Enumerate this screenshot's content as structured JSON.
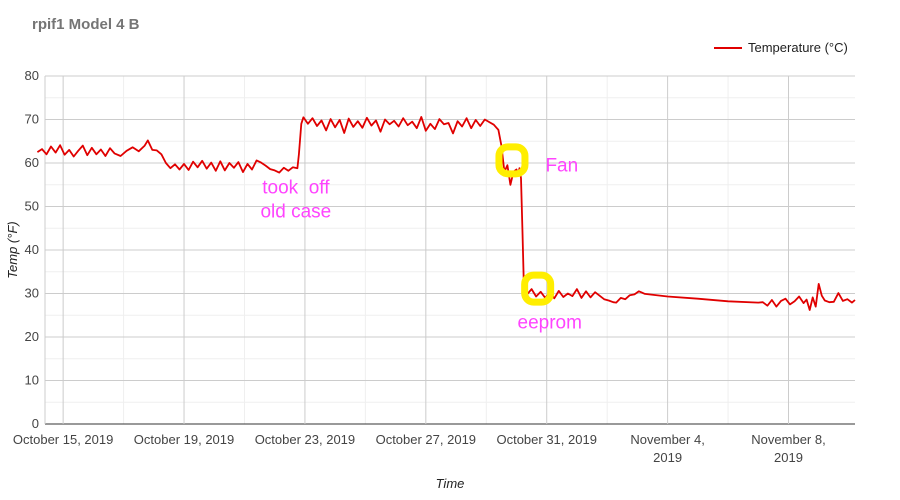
{
  "chart_data": {
    "type": "line",
    "title": "rpif1 Model 4 B",
    "xlabel": "Time",
    "ylabel": "Temp (°F)",
    "ylim": [
      0,
      80
    ],
    "yticks": [
      0,
      10,
      20,
      30,
      40,
      50,
      60,
      70,
      80
    ],
    "xticks": [
      {
        "day": 0,
        "label": [
          "October 15, 2019"
        ]
      },
      {
        "day": 4,
        "label": [
          "October 19, 2019"
        ]
      },
      {
        "day": 8,
        "label": [
          "October 23, 2019"
        ]
      },
      {
        "day": 12,
        "label": [
          "October 27, 2019"
        ]
      },
      {
        "day": 16,
        "label": [
          "October 31, 2019"
        ]
      },
      {
        "day": 20,
        "label": [
          "November 4,",
          "2019"
        ]
      },
      {
        "day": 24,
        "label": [
          "November 8,",
          "2019"
        ]
      }
    ],
    "grid": true,
    "legend_position": "top-right",
    "series": [
      {
        "name": "Temperature (°C)",
        "color": "#e00000",
        "points": [
          [
            -0.85,
            62.5
          ],
          [
            -0.7,
            63.2
          ],
          [
            -0.55,
            62.0
          ],
          [
            -0.4,
            63.8
          ],
          [
            -0.25,
            62.4
          ],
          [
            -0.1,
            64.1
          ],
          [
            0.05,
            61.9
          ],
          [
            0.2,
            63.0
          ],
          [
            0.35,
            61.5
          ],
          [
            0.5,
            62.8
          ],
          [
            0.65,
            64.0
          ],
          [
            0.8,
            61.8
          ],
          [
            0.95,
            63.5
          ],
          [
            1.1,
            62.0
          ],
          [
            1.25,
            63.1
          ],
          [
            1.4,
            61.6
          ],
          [
            1.55,
            63.4
          ],
          [
            1.7,
            62.2
          ],
          [
            1.9,
            61.6
          ],
          [
            2.1,
            62.8
          ],
          [
            2.3,
            63.6
          ],
          [
            2.5,
            62.7
          ],
          [
            2.7,
            64.0
          ],
          [
            2.8,
            65.2
          ],
          [
            2.95,
            63.0
          ],
          [
            3.1,
            62.9
          ],
          [
            3.25,
            62.0
          ],
          [
            3.4,
            60.0
          ],
          [
            3.55,
            58.8
          ],
          [
            3.7,
            59.7
          ],
          [
            3.85,
            58.5
          ],
          [
            4.0,
            59.8
          ],
          [
            4.15,
            58.4
          ],
          [
            4.3,
            60.3
          ],
          [
            4.45,
            59.0
          ],
          [
            4.6,
            60.5
          ],
          [
            4.75,
            58.7
          ],
          [
            4.9,
            60.1
          ],
          [
            5.05,
            58.2
          ],
          [
            5.2,
            60.4
          ],
          [
            5.35,
            58.3
          ],
          [
            5.5,
            60.0
          ],
          [
            5.65,
            58.9
          ],
          [
            5.8,
            60.2
          ],
          [
            5.95,
            57.9
          ],
          [
            6.1,
            59.8
          ],
          [
            6.25,
            58.5
          ],
          [
            6.4,
            60.6
          ],
          [
            6.55,
            60.1
          ],
          [
            6.7,
            59.4
          ],
          [
            6.85,
            58.6
          ],
          [
            7.0,
            58.3
          ],
          [
            7.15,
            57.8
          ],
          [
            7.3,
            58.9
          ],
          [
            7.45,
            58.2
          ],
          [
            7.6,
            59.0
          ],
          [
            7.75,
            58.8
          ],
          [
            7.8,
            62.0
          ],
          [
            7.88,
            69.0
          ],
          [
            7.95,
            70.5
          ],
          [
            8.1,
            69.0
          ],
          [
            8.25,
            70.3
          ],
          [
            8.4,
            68.5
          ],
          [
            8.55,
            69.8
          ],
          [
            8.7,
            67.5
          ],
          [
            8.85,
            70.1
          ],
          [
            9.0,
            68.2
          ],
          [
            9.15,
            69.9
          ],
          [
            9.3,
            66.9
          ],
          [
            9.45,
            70.2
          ],
          [
            9.6,
            68.3
          ],
          [
            9.75,
            69.6
          ],
          [
            9.9,
            68.1
          ],
          [
            10.05,
            70.4
          ],
          [
            10.2,
            68.6
          ],
          [
            10.35,
            69.8
          ],
          [
            10.5,
            67.2
          ],
          [
            10.65,
            70.0
          ],
          [
            10.8,
            68.9
          ],
          [
            10.95,
            69.7
          ],
          [
            11.1,
            68.4
          ],
          [
            11.25,
            70.3
          ],
          [
            11.4,
            68.7
          ],
          [
            11.55,
            69.5
          ],
          [
            11.7,
            68.0
          ],
          [
            11.85,
            70.6
          ],
          [
            12.0,
            67.4
          ],
          [
            12.15,
            69.0
          ],
          [
            12.3,
            67.8
          ],
          [
            12.45,
            70.1
          ],
          [
            12.6,
            68.9
          ],
          [
            12.75,
            69.2
          ],
          [
            12.9,
            66.8
          ],
          [
            13.05,
            69.6
          ],
          [
            13.2,
            68.4
          ],
          [
            13.35,
            70.3
          ],
          [
            13.5,
            68.0
          ],
          [
            13.65,
            69.9
          ],
          [
            13.8,
            68.5
          ],
          [
            13.95,
            70.0
          ],
          [
            14.1,
            69.4
          ],
          [
            14.25,
            68.8
          ],
          [
            14.4,
            67.6
          ],
          [
            14.5,
            64.0
          ],
          [
            14.6,
            58.0
          ],
          [
            14.7,
            59.5
          ],
          [
            14.8,
            55.0
          ],
          [
            14.9,
            58.0
          ],
          [
            15.0,
            58.5
          ],
          [
            15.05,
            57.0
          ],
          [
            15.1,
            58.8
          ],
          [
            15.15,
            56.5
          ],
          [
            15.2,
            44.0
          ],
          [
            15.25,
            30.5
          ],
          [
            15.35,
            29.8
          ],
          [
            15.5,
            31.0
          ],
          [
            15.65,
            29.3
          ],
          [
            15.8,
            30.4
          ],
          [
            15.95,
            29.0
          ],
          [
            16.1,
            30.2
          ],
          [
            16.25,
            28.9
          ],
          [
            16.4,
            30.6
          ],
          [
            16.55,
            29.2
          ],
          [
            16.7,
            30.0
          ],
          [
            16.85,
            29.4
          ],
          [
            17.0,
            31.0
          ],
          [
            17.15,
            29.0
          ],
          [
            17.3,
            30.5
          ],
          [
            17.45,
            29.1
          ],
          [
            17.6,
            30.3
          ],
          [
            17.75,
            29.5
          ],
          [
            17.9,
            28.7
          ],
          [
            18.05,
            28.4
          ],
          [
            18.2,
            28.0
          ],
          [
            18.3,
            27.9
          ],
          [
            18.45,
            29.0
          ],
          [
            18.6,
            28.7
          ],
          [
            18.75,
            29.6
          ],
          [
            18.9,
            29.8
          ],
          [
            19.05,
            30.5
          ],
          [
            19.15,
            30.2
          ],
          [
            19.25,
            29.9
          ],
          [
            20.0,
            29.3
          ],
          [
            21.0,
            28.8
          ],
          [
            22.0,
            28.2
          ],
          [
            23.0,
            27.9
          ],
          [
            23.15,
            28.0
          ],
          [
            23.3,
            27.2
          ],
          [
            23.45,
            28.5
          ],
          [
            23.6,
            27.0
          ],
          [
            23.75,
            28.3
          ],
          [
            23.9,
            28.8
          ],
          [
            24.05,
            27.5
          ],
          [
            24.2,
            28.2
          ],
          [
            24.35,
            29.3
          ],
          [
            24.5,
            27.8
          ],
          [
            24.6,
            28.6
          ],
          [
            24.7,
            26.2
          ],
          [
            24.8,
            29.1
          ],
          [
            24.9,
            27.0
          ],
          [
            25.0,
            32.2
          ],
          [
            25.1,
            29.5
          ],
          [
            25.2,
            28.4
          ],
          [
            25.35,
            28.0
          ],
          [
            25.5,
            28.1
          ],
          [
            25.65,
            30.1
          ],
          [
            25.8,
            28.3
          ],
          [
            25.95,
            28.7
          ],
          [
            26.1,
            27.9
          ],
          [
            26.2,
            28.5
          ]
        ]
      }
    ],
    "annotations": [
      {
        "day": 7.7,
        "y": 53,
        "lines": [
          "took  off",
          "old case"
        ],
        "color": "#ff44ff"
      },
      {
        "day": 16.5,
        "y": 58,
        "lines": [
          "Fan"
        ],
        "color": "#ff44ff"
      },
      {
        "day": 16.1,
        "y": 22,
        "lines": [
          "eeprom"
        ],
        "color": "#ff44ff"
      }
    ],
    "highlights": [
      {
        "day": 14.85,
        "y": 60.5,
        "color": "#ffee00"
      },
      {
        "day": 15.7,
        "y": 31.0,
        "color": "#ffee00"
      }
    ]
  }
}
